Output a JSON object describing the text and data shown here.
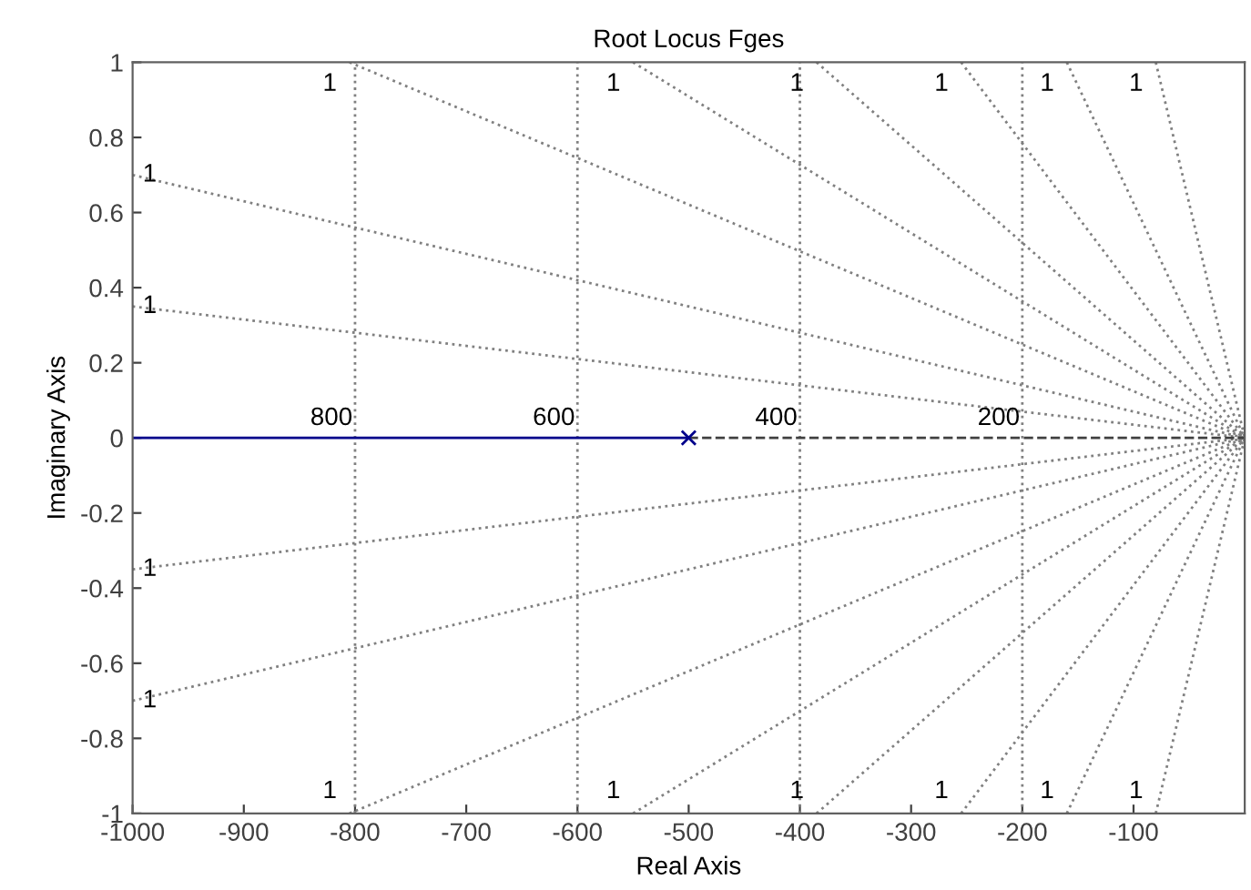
{
  "chart_data": {
    "type": "line",
    "title": "Root Locus Fges",
    "xlabel": "Real Axis",
    "ylabel": "Imaginary Axis",
    "xlim": [
      -1000,
      0
    ],
    "ylim": [
      -1,
      1
    ],
    "xticks": [
      -1000,
      -900,
      -800,
      -700,
      -600,
      -500,
      -400,
      -300,
      -200,
      -100
    ],
    "yticks": [
      -1,
      -0.8,
      -0.6,
      -0.4,
      -0.2,
      0,
      0.2,
      0.4,
      0.6,
      0.8,
      1
    ],
    "series": [
      {
        "color": "#808080",
        "line_style": "dotted",
        "x": [
          -1000,
          0
        ],
        "values": [
          0.7,
          0
        ]
      },
      {
        "color": "#808080",
        "line_style": "dotted",
        "x": [
          -1000,
          0
        ],
        "values": [
          0.35,
          0
        ]
      },
      {
        "color": "#808080",
        "line_style": "dotted",
        "x": [
          -1000,
          0
        ],
        "values": [
          -0.35,
          0
        ]
      },
      {
        "color": "#808080",
        "line_style": "dotted",
        "x": [
          -1000,
          0
        ],
        "values": [
          -0.7,
          0
        ]
      },
      {
        "color": "#808080",
        "line_style": "dotted",
        "x": [
          -805,
          0
        ],
        "values": [
          1,
          0
        ]
      },
      {
        "color": "#808080",
        "line_style": "dotted",
        "x": [
          -550,
          0
        ],
        "values": [
          1,
          0
        ]
      },
      {
        "color": "#808080",
        "line_style": "dotted",
        "x": [
          -385,
          0
        ],
        "values": [
          1,
          0
        ]
      },
      {
        "color": "#808080",
        "line_style": "dotted",
        "x": [
          -255,
          0
        ],
        "values": [
          1,
          0
        ]
      },
      {
        "color": "#808080",
        "line_style": "dotted",
        "x": [
          -160,
          0
        ],
        "values": [
          1,
          0
        ]
      },
      {
        "color": "#808080",
        "line_style": "dotted",
        "x": [
          -80,
          0
        ],
        "values": [
          1,
          0
        ]
      },
      {
        "color": "#808080",
        "line_style": "dotted",
        "x": [
          -805,
          0
        ],
        "values": [
          -1,
          0
        ]
      },
      {
        "color": "#808080",
        "line_style": "dotted",
        "x": [
          -550,
          0
        ],
        "values": [
          -1,
          0
        ]
      },
      {
        "color": "#808080",
        "line_style": "dotted",
        "x": [
          -385,
          0
        ],
        "values": [
          -1,
          0
        ]
      },
      {
        "color": "#808080",
        "line_style": "dotted",
        "x": [
          -255,
          0
        ],
        "values": [
          -1,
          0
        ]
      },
      {
        "color": "#808080",
        "line_style": "dotted",
        "x": [
          -160,
          0
        ],
        "values": [
          -1,
          0
        ]
      },
      {
        "color": "#808080",
        "line_style": "dotted",
        "x": [
          -80,
          0
        ],
        "values": [
          -1,
          0
        ]
      },
      {
        "color": "#808080",
        "line_style": "dotted",
        "x": [
          -800,
          -800
        ],
        "values": [
          -1,
          1
        ]
      },
      {
        "color": "#808080",
        "line_style": "dotted",
        "x": [
          -600,
          -600
        ],
        "values": [
          -1,
          1
        ]
      },
      {
        "color": "#808080",
        "line_style": "dotted",
        "x": [
          -400,
          -400
        ],
        "values": [
          -1,
          1
        ]
      },
      {
        "color": "#808080",
        "line_style": "dotted",
        "x": [
          -200,
          -200
        ],
        "values": [
          -1,
          1
        ]
      },
      {
        "color": "#404040",
        "line_style": "dashed",
        "x": [
          -500,
          0
        ],
        "values": [
          0,
          0
        ]
      },
      {
        "color": "#00008b",
        "line_style": "solid",
        "x": [
          -1000,
          -500
        ],
        "values": [
          0,
          0
        ]
      },
      {
        "type": "scatter",
        "color": "#00008b",
        "marker": "cross",
        "x": [
          -500
        ],
        "values": [
          0
        ]
      }
    ],
    "annotations": [
      {
        "text": "800",
        "x": -800,
        "y": 0
      },
      {
        "text": "600",
        "x": -600,
        "y": 0
      },
      {
        "text": "400",
        "x": -400,
        "y": 0
      },
      {
        "text": "200",
        "x": -200,
        "y": 0
      },
      {
        "text": "1",
        "x": -1000,
        "y": 0.7
      },
      {
        "text": "1",
        "x": -1000,
        "y": 0.35
      },
      {
        "text": "1",
        "x": -1000,
        "y": -0.35
      },
      {
        "text": "1",
        "x": -1000,
        "y": -0.7
      },
      {
        "text": "1",
        "x": -805,
        "y": 1
      },
      {
        "text": "1",
        "x": -550,
        "y": 1
      },
      {
        "text": "1",
        "x": -385,
        "y": 1
      },
      {
        "text": "1",
        "x": -255,
        "y": 1
      },
      {
        "text": "1",
        "x": -160,
        "y": 1
      },
      {
        "text": "1",
        "x": -80,
        "y": 1
      },
      {
        "text": "1",
        "x": -805,
        "y": -1
      },
      {
        "text": "1",
        "x": -550,
        "y": -1
      },
      {
        "text": "1",
        "x": -385,
        "y": -1
      },
      {
        "text": "1",
        "x": -255,
        "y": -1
      },
      {
        "text": "1",
        "x": -160,
        "y": -1
      },
      {
        "text": "1",
        "x": -80,
        "y": -1
      }
    ]
  }
}
